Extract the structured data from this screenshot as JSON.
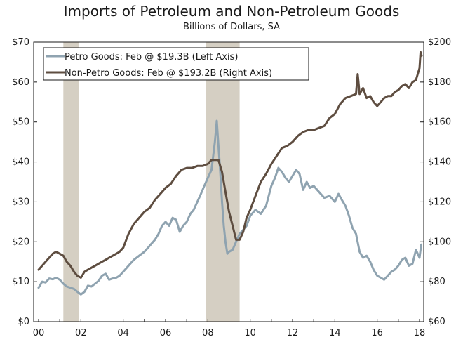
{
  "chart_data": {
    "type": "line",
    "title": "Imports of Petroleum and Non-Petroleum Goods",
    "subtitle": "Billions of Dollars, SA",
    "x_ticks": [
      "00",
      "02",
      "04",
      "06",
      "08",
      "10",
      "12",
      "14",
      "16",
      "18"
    ],
    "left_axis": {
      "ylim": [
        0,
        70
      ],
      "ticks": [
        "$0",
        "$10",
        "$20",
        "$30",
        "$40",
        "$50",
        "$60",
        "$70"
      ]
    },
    "right_axis": {
      "ylim": [
        60,
        200
      ],
      "ticks": [
        "$60",
        "$80",
        "$100",
        "$120",
        "$140",
        "$160",
        "$180",
        "$200"
      ]
    },
    "recessions": [
      [
        2001.17,
        2001.92
      ],
      [
        2007.92,
        2009.5
      ]
    ],
    "xlim": [
      2000,
      2018.2
    ],
    "legend": [
      "Petro Goods: Feb @ $19.3B (Left Axis)",
      "Non-Petro Goods: Feb @ $193.2B (Right Axis)"
    ],
    "series": [
      {
        "name": "Petro Goods",
        "axis": "left",
        "color": "#8fa3b0",
        "x": [
          2000,
          2000.17,
          2000.33,
          2000.5,
          2000.67,
          2000.83,
          2001,
          2001.17,
          2001.33,
          2001.5,
          2001.67,
          2001.83,
          2002,
          2002.17,
          2002.33,
          2002.5,
          2002.67,
          2002.83,
          2003,
          2003.17,
          2003.33,
          2003.5,
          2003.67,
          2003.83,
          2004,
          2004.25,
          2004.5,
          2004.75,
          2005,
          2005.17,
          2005.33,
          2005.5,
          2005.67,
          2005.83,
          2006,
          2006.17,
          2006.33,
          2006.5,
          2006.67,
          2006.83,
          2007,
          2007.17,
          2007.33,
          2007.5,
          2007.67,
          2007.83,
          2008,
          2008.17,
          2008.33,
          2008.42,
          2008.5,
          2008.58,
          2008.67,
          2008.75,
          2008.83,
          2008.92,
          2009,
          2009.17,
          2009.33,
          2009.5,
          2009.67,
          2009.83,
          2010,
          2010.25,
          2010.5,
          2010.75,
          2011,
          2011.17,
          2011.33,
          2011.5,
          2011.67,
          2011.83,
          2012,
          2012.17,
          2012.33,
          2012.5,
          2012.67,
          2012.83,
          2013,
          2013.25,
          2013.5,
          2013.75,
          2014,
          2014.17,
          2014.33,
          2014.5,
          2014.67,
          2014.83,
          2015,
          2015.17,
          2015.33,
          2015.5,
          2015.67,
          2015.83,
          2016,
          2016.17,
          2016.33,
          2016.5,
          2016.67,
          2016.83,
          2017,
          2017.17,
          2017.33,
          2017.5,
          2017.67,
          2017.83,
          2018,
          2018.08
        ],
        "values": [
          8.5,
          10.0,
          9.8,
          10.8,
          10.6,
          11.0,
          10.5,
          9.5,
          8.8,
          8.5,
          8.2,
          7.5,
          6.8,
          7.5,
          9.0,
          8.8,
          9.5,
          10.2,
          11.5,
          12.0,
          10.5,
          10.8,
          11.0,
          11.5,
          12.5,
          14.0,
          15.5,
          16.5,
          17.5,
          18.5,
          19.5,
          20.5,
          22.0,
          24.0,
          25.0,
          24.0,
          26.0,
          25.5,
          22.5,
          24.0,
          25.0,
          27.0,
          28.0,
          30.0,
          32.0,
          34.0,
          36.0,
          38.0,
          45.0,
          50.3,
          44.0,
          38.0,
          30.0,
          24.0,
          20.0,
          17.0,
          17.5,
          18.0,
          20.0,
          22.0,
          23.0,
          24.0,
          26.5,
          28.0,
          27.0,
          29.0,
          34.0,
          36.0,
          38.5,
          37.5,
          36.0,
          35.0,
          36.5,
          38.0,
          37.0,
          33.0,
          35.0,
          33.5,
          34.0,
          32.5,
          31.0,
          31.5,
          30.0,
          32.0,
          30.5,
          29.0,
          26.5,
          23.5,
          22.0,
          17.5,
          16.0,
          16.5,
          15.0,
          13.0,
          11.5,
          11.0,
          10.5,
          11.5,
          12.5,
          13.0,
          14.0,
          15.5,
          16.0,
          14.0,
          14.5,
          18.0,
          16.0,
          19.3
        ]
      },
      {
        "name": "Non-Petro Goods",
        "axis": "right",
        "color": "#5e4d40",
        "x": [
          2000,
          2000.17,
          2000.33,
          2000.5,
          2000.67,
          2000.83,
          2001,
          2001.17,
          2001.33,
          2001.5,
          2001.67,
          2001.83,
          2002,
          2002.17,
          2002.33,
          2002.5,
          2002.67,
          2002.83,
          2003,
          2003.17,
          2003.33,
          2003.5,
          2003.67,
          2003.83,
          2004,
          2004.25,
          2004.5,
          2004.75,
          2005,
          2005.25,
          2005.5,
          2005.75,
          2006,
          2006.25,
          2006.5,
          2006.75,
          2007,
          2007.25,
          2007.5,
          2007.75,
          2008,
          2008.17,
          2008.33,
          2008.5,
          2008.67,
          2008.83,
          2009,
          2009.17,
          2009.33,
          2009.5,
          2009.67,
          2009.83,
          2010,
          2010.25,
          2010.5,
          2010.75,
          2011,
          2011.25,
          2011.5,
          2011.75,
          2012,
          2012.25,
          2012.5,
          2012.75,
          2013,
          2013.25,
          2013.5,
          2013.75,
          2014,
          2014.25,
          2014.5,
          2014.75,
          2015,
          2015.08,
          2015.17,
          2015.33,
          2015.5,
          2015.67,
          2015.83,
          2016,
          2016.17,
          2016.33,
          2016.5,
          2016.67,
          2016.83,
          2017,
          2017.17,
          2017.33,
          2017.5,
          2017.67,
          2017.83,
          2018,
          2018.05,
          2018.1
        ],
        "values": [
          86,
          88,
          90,
          92,
          94,
          95,
          94,
          93,
          90,
          88,
          85,
          83,
          82,
          85,
          86,
          87,
          88,
          89,
          90,
          91,
          92,
          93,
          94,
          95,
          97,
          104,
          109,
          112,
          115,
          117,
          121,
          124,
          127,
          129,
          133,
          136,
          137,
          137,
          138,
          138,
          139,
          141,
          141,
          141,
          135,
          125,
          115,
          108,
          101,
          101,
          105,
          112,
          116,
          123,
          130,
          134,
          139,
          143,
          147,
          148,
          150,
          153,
          155,
          156,
          156,
          157,
          158,
          162,
          164,
          169,
          172,
          173,
          174,
          184,
          174,
          177,
          172,
          173,
          170,
          168,
          170,
          172,
          173,
          173,
          175,
          176,
          178,
          179,
          177,
          180,
          181,
          187,
          195,
          193.2
        ]
      }
    ]
  }
}
